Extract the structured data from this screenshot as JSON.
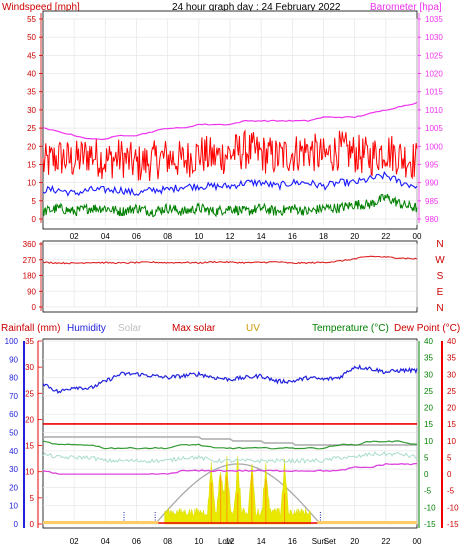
{
  "header": {
    "left_title": "Windspeed [mph]",
    "center_title": "24 hour graph day : 24 February 2022",
    "right_title": "Barometer [hpa]"
  },
  "colors": {
    "windspeed": "#dd0000",
    "gust": "#ff0000",
    "avg": "#1a1aff",
    "green_series": "#008000",
    "barometer": "#ee33ee",
    "direction": "#dd2222",
    "humidity": "#2222dd",
    "solar": "#aaaaaa",
    "max_solar": "#aaaaaa",
    "uv": "#e8e800",
    "temperature": "#339933",
    "dewpoint": "#dd44dd",
    "rain_line": "#ee0000",
    "axis_labels_red": "#cc0000"
  },
  "wind_panel": {
    "left_ticks": [
      "55",
      "50",
      "45",
      "40",
      "35",
      "30",
      "25",
      "20",
      "15",
      "10",
      "5",
      "0"
    ],
    "right_ticks": [
      "1035",
      "1030",
      "1025",
      "1020",
      "1015",
      "1010",
      "1005",
      "1000",
      "995",
      "990",
      "985",
      "980"
    ],
    "x_ticks": [
      "02",
      "04",
      "06",
      "08",
      "10",
      "12",
      "14",
      "16",
      "18",
      "20",
      "22",
      "00"
    ]
  },
  "direction_panel": {
    "left_ticks": [
      "360",
      "270",
      "180",
      "90",
      "0"
    ],
    "compass": [
      "N",
      "W",
      "S",
      "E",
      "N"
    ]
  },
  "bottom_legend": {
    "rainfall": "Rainfall (mm)",
    "humidity": "Humidity",
    "solar": "Solar",
    "max_solar": "Max solar",
    "uv": "UV",
    "temperature": "Temperature (°C)",
    "dewpoint": "Dew Point (°C)"
  },
  "bottom_panel": {
    "humidity_ticks": [
      "100",
      "90",
      "80",
      "70",
      "60",
      "50",
      "40",
      "30",
      "20",
      "10",
      "0"
    ],
    "rain_ticks": [
      "35",
      "30",
      "25",
      "20",
      "15",
      "10",
      "5",
      "0"
    ],
    "temp_left_ticks": [
      "40",
      "35",
      "30",
      "25",
      "20",
      "15",
      "10",
      "5",
      "0",
      "-5",
      "-10",
      "-15"
    ],
    "temp_right_ticks": [
      "40",
      "35",
      "30",
      "25",
      "20",
      "15",
      "10",
      "5",
      "0",
      "-5",
      "-10",
      "-15"
    ],
    "x_ticks": [
      "02",
      "04",
      "06",
      "08",
      "10",
      "Low",
      "12",
      "14",
      "16",
      "Sun",
      "Set",
      "20",
      "22",
      "00"
    ],
    "marker_labels": [
      "Low",
      "Rise",
      "Sun",
      "Set"
    ]
  },
  "chart_data": {
    "type": "line",
    "title": "24 hour graph day : 24 February 2022",
    "x_range_hours": [
      0,
      24
    ],
    "wind": {
      "ylabel": "Windspeed [mph]",
      "ylim": [
        0,
        55
      ],
      "series": [
        {
          "name": "gust",
          "values": [
            15,
            17,
            16,
            18,
            16,
            17,
            15,
            16,
            17,
            16,
            18,
            17,
            18,
            19,
            18,
            17,
            18,
            19,
            17,
            19,
            18,
            17,
            19,
            17,
            16
          ]
        },
        {
          "name": "average",
          "values": [
            8,
            8,
            7,
            8,
            8,
            8,
            7,
            8,
            8,
            9,
            9,
            9,
            9,
            10,
            10,
            9,
            10,
            10,
            9,
            10,
            10,
            11,
            12,
            10,
            9
          ]
        },
        {
          "name": "speed",
          "values": [
            2,
            3,
            2,
            3,
            3,
            2,
            3,
            2,
            3,
            2,
            3,
            2,
            3,
            2,
            3,
            2,
            3,
            2,
            3,
            3,
            4,
            4,
            6,
            4,
            3
          ]
        }
      ]
    },
    "barometer": {
      "ylabel": "Barometer [hpa]",
      "ylim": [
        980,
        1035
      ],
      "values": [
        1005,
        1004,
        1003,
        1002,
        1002,
        1003,
        1003,
        1004,
        1005,
        1005,
        1006,
        1006,
        1006,
        1007,
        1007,
        1007,
        1007,
        1007,
        1008,
        1008,
        1008,
        1009,
        1010,
        1011,
        1012
      ]
    },
    "wind_direction": {
      "ylim": [
        0,
        360
      ],
      "values": [
        255,
        252,
        250,
        255,
        253,
        251,
        254,
        256,
        253,
        255,
        252,
        258,
        256,
        253,
        255,
        258,
        250,
        252,
        255,
        262,
        275,
        290,
        285,
        280,
        275
      ]
    },
    "humidity": {
      "ylim": [
        0,
        100
      ],
      "values": [
        77,
        72,
        75,
        74,
        78,
        82,
        82,
        81,
        80,
        81,
        82,
        80,
        79,
        80,
        81,
        78,
        78,
        80,
        79,
        80,
        86,
        85,
        83,
        84,
        84
      ]
    },
    "temperature": {
      "ylim": [
        -15,
        40
      ],
      "values": [
        8,
        7,
        7,
        7,
        6,
        6,
        6,
        6,
        6,
        7,
        7,
        6,
        6,
        6,
        6,
        6,
        6,
        6,
        6,
        7,
        7,
        8,
        8,
        8,
        7
      ]
    },
    "dewpoint": {
      "ylim": [
        -15,
        40
      ],
      "values": [
        1,
        0,
        -1,
        -1,
        -1,
        -1,
        -1,
        0,
        0,
        1,
        1,
        1,
        1,
        1,
        1,
        1,
        1,
        1,
        1,
        1,
        2,
        2,
        3,
        3,
        3
      ]
    },
    "max_solar_arc_hours": [
      7.2,
      17.8
    ],
    "uv_spike_hours": [
      10.8,
      11.4,
      11.8,
      12.5,
      13.4,
      14.3,
      15.5
    ]
  }
}
